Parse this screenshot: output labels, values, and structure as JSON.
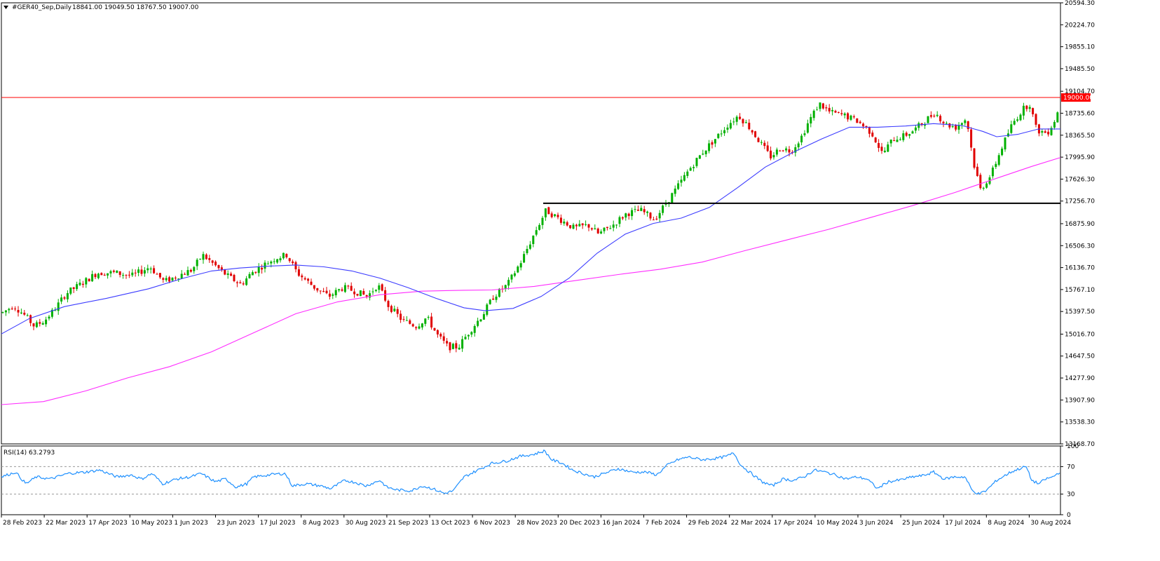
{
  "header": {
    "symbol_line": "#GER40_Sep,Daily",
    "ohlc": "18841.00 19049.50 18767.50 19007.00"
  },
  "rsi_header": "RSI(14) 63.2793",
  "colors": {
    "bull": "#00b000",
    "bear": "#e00000",
    "ma_fast": "#3c3cff",
    "ma_slow": "#ff2cff",
    "resistance": "#ff0000",
    "support": "#000000",
    "rsi": "#1e90ff",
    "price_tag_bg": "#ff0000",
    "price_tag_text": "#ffffff"
  },
  "chart_data": [
    {
      "type": "candlestick",
      "ylim": [
        13168.7,
        20594.3
      ],
      "yticks": [
        "20594.30",
        "20224.70",
        "19855.10",
        "19485.50",
        "19104.70",
        "18735.60",
        "18365.50",
        "17995.90",
        "17626.30",
        "17256.70",
        "16875.90",
        "16506.30",
        "16136.70",
        "15767.10",
        "15397.50",
        "15016.70",
        "14647.50",
        "14277.90",
        "13907.90",
        "13538.30",
        "13168.70"
      ],
      "xtick_labels": [
        "28 Feb 2023",
        "22 Mar 2023",
        "17 Apr 2023",
        "10 May 2023",
        "1 Jun 2023",
        "23 Jun 2023",
        "17 Jul 2023",
        "8 Aug 2023",
        "30 Aug 2023",
        "21 Sep 2023",
        "13 Oct 2023",
        "6 Nov 2023",
        "28 Nov 2023",
        "20 Dec 2023",
        "16 Jan 2024",
        "7 Feb 2024",
        "29 Feb 2024",
        "22 Mar 2024",
        "17 Apr 2024",
        "10 May 2024",
        "3 Jun 2024",
        "25 Jun 2024",
        "17 Jul 2024",
        "8 Aug 2024",
        "30 Aug 2024"
      ],
      "series": [
        {
          "name": "MA fast",
          "points": [
            [
              0,
              15020
            ],
            [
              40,
              15280
            ],
            [
              90,
              15480
            ],
            [
              150,
              15620
            ],
            [
              210,
              15780
            ],
            [
              260,
              15960
            ],
            [
              300,
              16080
            ],
            [
              340,
              16130
            ],
            [
              380,
              16160
            ],
            [
              420,
              16180
            ],
            [
              460,
              16150
            ],
            [
              500,
              16080
            ],
            [
              540,
              15960
            ],
            [
              580,
              15800
            ],
            [
              620,
              15620
            ],
            [
              660,
              15460
            ],
            [
              690,
              15410
            ],
            [
              730,
              15450
            ],
            [
              770,
              15650
            ],
            [
              810,
              15960
            ],
            [
              850,
              16380
            ],
            [
              890,
              16700
            ],
            [
              930,
              16880
            ],
            [
              970,
              16970
            ],
            [
              1010,
              17150
            ],
            [
              1050,
              17480
            ],
            [
              1090,
              17830
            ],
            [
              1130,
              18080
            ],
            [
              1170,
              18300
            ],
            [
              1210,
              18500
            ],
            [
              1250,
              18500
            ],
            [
              1290,
              18520
            ],
            [
              1330,
              18560
            ],
            [
              1370,
              18530
            ],
            [
              1400,
              18430
            ],
            [
              1420,
              18340
            ],
            [
              1450,
              18380
            ],
            [
              1480,
              18470
            ],
            [
              1511,
              18470
            ]
          ]
        },
        {
          "name": "MA slow",
          "points": [
            [
              0,
              13830
            ],
            [
              60,
              13880
            ],
            [
              120,
              14060
            ],
            [
              180,
              14280
            ],
            [
              240,
              14470
            ],
            [
              300,
              14720
            ],
            [
              360,
              15040
            ],
            [
              420,
              15360
            ],
            [
              480,
              15560
            ],
            [
              540,
              15680
            ],
            [
              600,
              15740
            ],
            [
              660,
              15755
            ],
            [
              700,
              15760
            ],
            [
              760,
              15820
            ],
            [
              820,
              15920
            ],
            [
              880,
              16020
            ],
            [
              940,
              16110
            ],
            [
              1000,
              16230
            ],
            [
              1060,
              16420
            ],
            [
              1120,
              16600
            ],
            [
              1180,
              16780
            ],
            [
              1240,
              16980
            ],
            [
              1300,
              17180
            ],
            [
              1360,
              17400
            ],
            [
              1420,
              17640
            ],
            [
              1470,
              17840
            ],
            [
              1511,
              17990
            ]
          ]
        },
        {
          "name": "Resistance",
          "y": 19000.0,
          "x_start": 0,
          "x_end": 1511
        },
        {
          "name": "Support",
          "y": 17220.0,
          "x_start": 773,
          "x_end": 1511
        },
        {
          "name": "Price",
          "anchors": [
            [
              0,
              15380
            ],
            [
              15,
              15500
            ],
            [
              30,
              15350
            ],
            [
              45,
              15150
            ],
            [
              60,
              15250
            ],
            [
              75,
              15450
            ],
            [
              90,
              15700
            ],
            [
              110,
              15850
            ],
            [
              135,
              16050
            ],
            [
              160,
              16050
            ],
            [
              185,
              16000
            ],
            [
              210,
              16150
            ],
            [
              230,
              15900
            ],
            [
              250,
              16000
            ],
            [
              270,
              16100
            ],
            [
              285,
              16350
            ],
            [
              300,
              16200
            ],
            [
              320,
              16000
            ],
            [
              340,
              15850
            ],
            [
              355,
              16050
            ],
            [
              375,
              16200
            ],
            [
              390,
              16300
            ],
            [
              405,
              16350
            ],
            [
              420,
              16050
            ],
            [
              445,
              15800
            ],
            [
              465,
              15650
            ],
            [
              485,
              15800
            ],
            [
              500,
              15750
            ],
            [
              520,
              15650
            ],
            [
              535,
              15850
            ],
            [
              550,
              15500
            ],
            [
              570,
              15250
            ],
            [
              590,
              15150
            ],
            [
              605,
              15300
            ],
            [
              620,
              15000
            ],
            [
              635,
              14800
            ],
            [
              650,
              14800
            ],
            [
              665,
              15050
            ],
            [
              685,
              15350
            ],
            [
              700,
              15650
            ],
            [
              720,
              15850
            ],
            [
              740,
              16250
            ],
            [
              760,
              16750
            ],
            [
              775,
              17100
            ],
            [
              795,
              16950
            ],
            [
              815,
              16800
            ],
            [
              835,
              16850
            ],
            [
              850,
              16700
            ],
            [
              870,
              16850
            ],
            [
              890,
              17050
            ],
            [
              910,
              17100
            ],
            [
              930,
              16950
            ],
            [
              945,
              17200
            ],
            [
              960,
              17450
            ],
            [
              980,
              17800
            ],
            [
              1000,
              18100
            ],
            [
              1020,
              18350
            ],
            [
              1035,
              18550
            ],
            [
              1050,
              18700
            ],
            [
              1065,
              18500
            ],
            [
              1080,
              18250
            ],
            [
              1095,
              18000
            ],
            [
              1110,
              18150
            ],
            [
              1125,
              18100
            ],
            [
              1140,
              18350
            ],
            [
              1150,
              18600
            ],
            [
              1165,
              18900
            ],
            [
              1180,
              18750
            ],
            [
              1200,
              18700
            ],
            [
              1220,
              18600
            ],
            [
              1240,
              18400
            ],
            [
              1255,
              18050
            ],
            [
              1270,
              18300
            ],
            [
              1285,
              18350
            ],
            [
              1300,
              18450
            ],
            [
              1315,
              18600
            ],
            [
              1330,
              18750
            ],
            [
              1345,
              18550
            ],
            [
              1360,
              18500
            ],
            [
              1375,
              18650
            ],
            [
              1385,
              17900
            ],
            [
              1395,
              17450
            ],
            [
              1410,
              17700
            ],
            [
              1425,
              18150
            ],
            [
              1440,
              18550
            ],
            [
              1455,
              18800
            ],
            [
              1465,
              18900
            ],
            [
              1475,
              18450
            ],
            [
              1490,
              18400
            ],
            [
              1500,
              18600
            ],
            [
              1511,
              18950
            ]
          ]
        }
      ]
    },
    {
      "type": "line",
      "ylim": [
        0,
        100
      ],
      "yticks": [
        "100",
        "70",
        "30",
        "0"
      ],
      "levels": [
        70,
        30
      ],
      "series": [
        {
          "name": "RSI(14)",
          "anchors": [
            [
              0,
              55
            ],
            [
              20,
              62
            ],
            [
              35,
              45
            ],
            [
              50,
              55
            ],
            [
              70,
              52
            ],
            [
              95,
              60
            ],
            [
              120,
              62
            ],
            [
              140,
              65
            ],
            [
              165,
              55
            ],
            [
              185,
              58
            ],
            [
              200,
              52
            ],
            [
              215,
              60
            ],
            [
              230,
              45
            ],
            [
              250,
              52
            ],
            [
              270,
              55
            ],
            [
              285,
              60
            ],
            [
              305,
              48
            ],
            [
              320,
              52
            ],
            [
              335,
              40
            ],
            [
              350,
              45
            ],
            [
              360,
              55
            ],
            [
              375,
              57
            ],
            [
              390,
              59
            ],
            [
              405,
              60
            ],
            [
              415,
              42
            ],
            [
              435,
              45
            ],
            [
              455,
              42
            ],
            [
              470,
              38
            ],
            [
              490,
              50
            ],
            [
              505,
              47
            ],
            [
              520,
              42
            ],
            [
              540,
              50
            ],
            [
              550,
              40
            ],
            [
              565,
              36
            ],
            [
              585,
              35
            ],
            [
              600,
              42
            ],
            [
              615,
              38
            ],
            [
              632,
              31
            ],
            [
              645,
              35
            ],
            [
              660,
              55
            ],
            [
              680,
              65
            ],
            [
              700,
              75
            ],
            [
              720,
              78
            ],
            [
              740,
              85
            ],
            [
              760,
              88
            ],
            [
              775,
              93
            ],
            [
              785,
              80
            ],
            [
              800,
              75
            ],
            [
              815,
              65
            ],
            [
              830,
              60
            ],
            [
              845,
              55
            ],
            [
              860,
              60
            ],
            [
              880,
              67
            ],
            [
              900,
              62
            ],
            [
              920,
              62
            ],
            [
              935,
              58
            ],
            [
              950,
              72
            ],
            [
              965,
              80
            ],
            [
              980,
              84
            ],
            [
              1000,
              80
            ],
            [
              1020,
              82
            ],
            [
              1035,
              85
            ],
            [
              1045,
              90
            ],
            [
              1055,
              72
            ],
            [
              1070,
              60
            ],
            [
              1085,
              48
            ],
            [
              1100,
              42
            ],
            [
              1115,
              52
            ],
            [
              1130,
              50
            ],
            [
              1145,
              55
            ],
            [
              1160,
              65
            ],
            [
              1175,
              62
            ],
            [
              1190,
              58
            ],
            [
              1205,
              52
            ],
            [
              1220,
              55
            ],
            [
              1235,
              52
            ],
            [
              1250,
              38
            ],
            [
              1265,
              48
            ],
            [
              1280,
              50
            ],
            [
              1300,
              55
            ],
            [
              1315,
              57
            ],
            [
              1330,
              62
            ],
            [
              1345,
              52
            ],
            [
              1360,
              55
            ],
            [
              1375,
              55
            ],
            [
              1385,
              35
            ],
            [
              1395,
              30
            ],
            [
              1405,
              35
            ],
            [
              1420,
              50
            ],
            [
              1440,
              62
            ],
            [
              1455,
              68
            ],
            [
              1462,
              70
            ],
            [
              1470,
              50
            ],
            [
              1480,
              45
            ],
            [
              1490,
              52
            ],
            [
              1500,
              55
            ],
            [
              1511,
              63
            ]
          ]
        }
      ]
    }
  ],
  "price_tag": "19000.00"
}
